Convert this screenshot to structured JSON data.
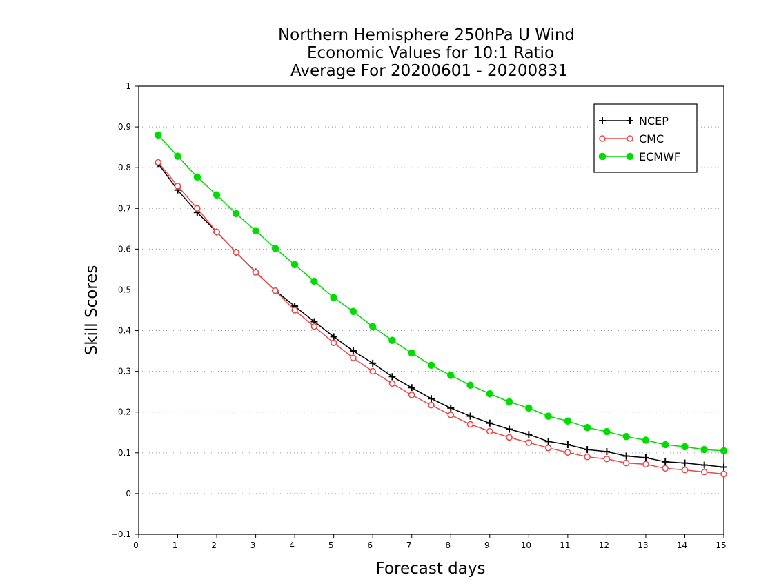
{
  "chart_data": {
    "type": "line",
    "title_lines": [
      "Northern Hemisphere 250hPa U Wind",
      "Economic Values for 10:1 Ratio",
      "Average For 20200601 - 20200831"
    ],
    "xlabel": "Forecast days",
    "ylabel": "Skill Scores",
    "xlim": [
      0,
      15
    ],
    "ylim": [
      -0.1,
      1
    ],
    "x_ticks": [
      "0",
      "1",
      "2",
      "3",
      "4",
      "5",
      "6",
      "7",
      "8",
      "9",
      "10",
      "11",
      "12",
      "13",
      "14",
      "15"
    ],
    "y_ticks": [
      "−0.1",
      "0",
      "0.1",
      "0.2",
      "0.3",
      "0.4",
      "0.5",
      "0.6",
      "0.7",
      "0.8",
      "0.9",
      "1"
    ],
    "grid": "horizontal dotted",
    "legend_position": "top-right",
    "x": [
      0.5,
      1,
      1.5,
      2,
      2.5,
      3,
      3.5,
      4,
      4.5,
      5,
      5.5,
      6,
      6.5,
      7,
      7.5,
      8,
      8.5,
      9,
      9.5,
      10,
      10.5,
      11,
      11.5,
      12,
      12.5,
      13,
      13.5,
      14,
      14.5,
      15
    ],
    "series": [
      {
        "name": "NCEP",
        "color": "#000000",
        "marker": "plus",
        "values": [
          0.81,
          0.745,
          0.69,
          0.642,
          0.592,
          0.544,
          0.498,
          0.46,
          0.422,
          0.385,
          0.35,
          0.32,
          0.287,
          0.26,
          0.233,
          0.21,
          0.19,
          0.173,
          0.158,
          0.145,
          0.128,
          0.12,
          0.108,
          0.103,
          0.092,
          0.088,
          0.078,
          0.075,
          0.07,
          0.065
        ]
      },
      {
        "name": "CMC",
        "color": "#ef4747",
        "marker": "open-circle",
        "values": [
          0.813,
          0.755,
          0.7,
          0.642,
          0.592,
          0.543,
          0.498,
          0.45,
          0.41,
          0.37,
          0.333,
          0.3,
          0.27,
          0.242,
          0.217,
          0.193,
          0.17,
          0.153,
          0.138,
          0.125,
          0.112,
          0.101,
          0.09,
          0.085,
          0.075,
          0.072,
          0.062,
          0.058,
          0.053,
          0.048
        ]
      },
      {
        "name": "ECMWF",
        "color": "#00dc00",
        "marker": "filled-circle",
        "values": [
          0.88,
          0.828,
          0.777,
          0.733,
          0.687,
          0.645,
          0.602,
          0.562,
          0.521,
          0.481,
          0.447,
          0.41,
          0.376,
          0.345,
          0.315,
          0.29,
          0.266,
          0.245,
          0.225,
          0.21,
          0.19,
          0.178,
          0.162,
          0.152,
          0.14,
          0.131,
          0.12,
          0.115,
          0.108,
          0.105
        ]
      }
    ]
  }
}
